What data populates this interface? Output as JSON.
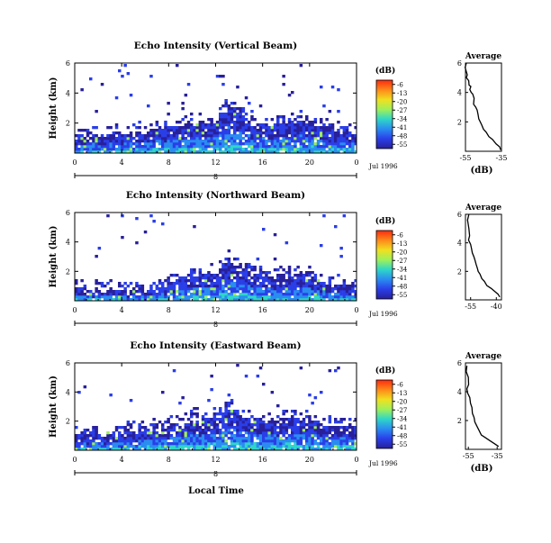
{
  "figure": {
    "xlabel": "Local Time",
    "date_label": "Jul 1996"
  },
  "colorbar": {
    "unit": "(dB)",
    "labels": [
      "-6",
      "-13",
      "-20",
      "-27",
      "-34",
      "-41",
      "-48",
      "-55"
    ],
    "colors": [
      "#ff2a10",
      "#ff8a1a",
      "#f0e020",
      "#9ef05a",
      "#2fd6c8",
      "#2a8cf0",
      "#2a3ee8",
      "#28209a"
    ]
  },
  "chart_data": [
    {
      "type": "heatmap",
      "title": "Echo Intensity (Vertical Beam)",
      "ylabel": "Height (km)",
      "xlabel": "",
      "x_ticks": [
        "0",
        "4",
        "8",
        "12",
        "16",
        "20",
        "0"
      ],
      "x_range": [
        0,
        24
      ],
      "y_ticks": [
        "2",
        "4",
        "6"
      ],
      "y_range": [
        0,
        6
      ],
      "day_marker": "8",
      "echo_top_km": [
        1.2,
        1.2,
        1.3,
        1.3,
        1.3,
        1.4,
        1.5,
        1.6,
        1.8,
        1.9,
        2.0,
        2.1,
        2.1,
        3.5,
        2.5,
        2.1,
        2.0,
        2.0,
        2.1,
        2.2,
        2.1,
        1.8,
        1.6,
        1.5,
        1.4
      ]
    },
    {
      "type": "heatmap",
      "title": "Echo Intensity (Northward Beam)",
      "ylabel": "Height (km)",
      "xlabel": "",
      "x_ticks": [
        "0",
        "4",
        "8",
        "12",
        "16",
        "20",
        "0"
      ],
      "x_range": [
        0,
        24
      ],
      "y_ticks": [
        "2",
        "4",
        "6"
      ],
      "y_range": [
        0,
        6
      ],
      "day_marker": "8",
      "echo_top_km": [
        0.8,
        0.8,
        0.8,
        0.8,
        0.7,
        0.7,
        0.8,
        1.0,
        1.2,
        1.4,
        1.6,
        1.8,
        1.9,
        3.0,
        2.3,
        2.0,
        1.9,
        1.8,
        1.8,
        1.9,
        1.7,
        1.4,
        1.2,
        1.1,
        1.0
      ]
    },
    {
      "type": "heatmap",
      "title": "Echo Intensity (Eastward Beam)",
      "ylabel": "Height (km)",
      "xlabel": "Local Time",
      "x_ticks": [
        "0",
        "4",
        "8",
        "12",
        "16",
        "20",
        "0"
      ],
      "x_range": [
        0,
        24
      ],
      "y_ticks": [
        "2",
        "4",
        "6"
      ],
      "y_range": [
        0,
        6
      ],
      "day_marker": "8",
      "echo_top_km": [
        1.0,
        1.0,
        1.1,
        1.2,
        1.3,
        1.3,
        1.4,
        1.6,
        1.8,
        1.9,
        2.0,
        2.2,
        2.3,
        3.2,
        2.5,
        2.1,
        2.0,
        2.1,
        2.2,
        2.2,
        2.1,
        1.9,
        1.8,
        1.7,
        1.6
      ]
    },
    {
      "type": "line",
      "title": "Average",
      "xlabel": "(dB)",
      "x_ticks": [
        "-55",
        "-35"
      ],
      "x_range": [
        -55,
        -35
      ],
      "y_ticks": [
        "2",
        "4",
        "6"
      ],
      "y_range": [
        0,
        6
      ],
      "profile": [
        [
          -54.5,
          6.0
        ],
        [
          -55.2,
          5.7
        ],
        [
          -54.0,
          5.2
        ],
        [
          -54.5,
          5.0
        ],
        [
          -53.2,
          4.8
        ],
        [
          -53.0,
          4.5
        ],
        [
          -52.0,
          4.4
        ],
        [
          -52.6,
          4.2
        ],
        [
          -51.8,
          4.0
        ],
        [
          -51.0,
          3.9
        ],
        [
          -50.2,
          3.6
        ],
        [
          -50.5,
          3.2
        ],
        [
          -49.3,
          3.0
        ],
        [
          -48.5,
          2.8
        ],
        [
          -48.0,
          2.5
        ],
        [
          -47.6,
          2.2
        ],
        [
          -46.8,
          2.0
        ],
        [
          -46.0,
          1.8
        ],
        [
          -45.0,
          1.5
        ],
        [
          -43.5,
          1.3
        ],
        [
          -42.0,
          1.0
        ],
        [
          -40.0,
          0.8
        ],
        [
          -38.0,
          0.5
        ],
        [
          -36.0,
          0.3
        ],
        [
          -35.5,
          0.1
        ]
      ]
    },
    {
      "type": "line",
      "title": "Average",
      "xlabel": "",
      "x_ticks": [
        "-55",
        "-40"
      ],
      "x_range": [
        -58,
        -37
      ],
      "y_ticks": [
        "2",
        "4",
        "6"
      ],
      "y_range": [
        0,
        6
      ],
      "profile": [
        [
          -56.0,
          6.0
        ],
        [
          -56.8,
          5.6
        ],
        [
          -56.0,
          5.0
        ],
        [
          -55.6,
          4.5
        ],
        [
          -56.2,
          4.2
        ],
        [
          -55.0,
          3.9
        ],
        [
          -54.5,
          3.6
        ],
        [
          -54.0,
          3.3
        ],
        [
          -53.0,
          3.0
        ],
        [
          -52.5,
          2.8
        ],
        [
          -51.8,
          2.5
        ],
        [
          -51.0,
          2.2
        ],
        [
          -50.6,
          2.0
        ],
        [
          -49.5,
          1.8
        ],
        [
          -48.5,
          1.5
        ],
        [
          -47.0,
          1.3
        ],
        [
          -45.5,
          1.0
        ],
        [
          -43.0,
          0.8
        ],
        [
          -41.0,
          0.6
        ],
        [
          -39.0,
          0.4
        ],
        [
          -38.0,
          0.2
        ]
      ]
    },
    {
      "type": "line",
      "title": "Average",
      "xlabel": "(dB)",
      "x_ticks": [
        "-55",
        "-35"
      ],
      "x_range": [
        -57,
        -32
      ],
      "y_ticks": [
        "2",
        "4",
        "6"
      ],
      "y_range": [
        0,
        6
      ],
      "profile": [
        [
          -56.0,
          5.8
        ],
        [
          -56.5,
          5.4
        ],
        [
          -55.0,
          5.0
        ],
        [
          -54.8,
          4.5
        ],
        [
          -56.0,
          4.2
        ],
        [
          -55.5,
          3.9
        ],
        [
          -54.0,
          3.6
        ],
        [
          -53.5,
          3.2
        ],
        [
          -52.5,
          2.9
        ],
        [
          -52.2,
          2.5
        ],
        [
          -51.0,
          2.2
        ],
        [
          -50.5,
          1.9
        ],
        [
          -49.0,
          1.6
        ],
        [
          -47.5,
          1.3
        ],
        [
          -46.0,
          1.0
        ],
        [
          -43.0,
          0.8
        ],
        [
          -40.0,
          0.6
        ],
        [
          -37.0,
          0.4
        ],
        [
          -34.0,
          0.2
        ]
      ]
    }
  ]
}
